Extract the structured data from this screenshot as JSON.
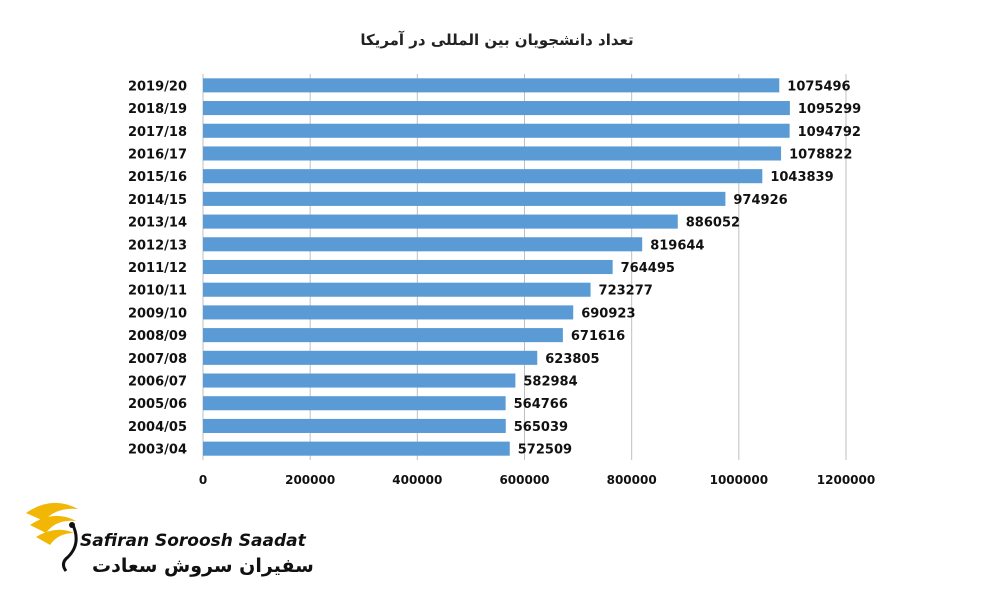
{
  "chart_data": {
    "type": "bar",
    "orientation": "horizontal",
    "title": "تعداد دانشجویان بین المللی در آمریکا",
    "categories": [
      "2019/20",
      "2018/19",
      "2017/18",
      "2016/17",
      "2015/16",
      "2014/15",
      "2013/14",
      "2012/13",
      "2011/12",
      "2010/11",
      "2009/10",
      "2008/09",
      "2007/08",
      "2006/07",
      "2005/06",
      "2004/05",
      "2003/04"
    ],
    "values": [
      1075496,
      1095299,
      1094792,
      1078822,
      1043839,
      974926,
      886052,
      819644,
      764495,
      723277,
      690923,
      671616,
      623805,
      582984,
      564766,
      565039,
      572509
    ],
    "value_labels": [
      "1075496",
      "1095299",
      "1094792",
      "1078822",
      "1043839",
      "974926",
      "886052",
      "819644",
      "764495",
      "723277",
      "690923",
      "671616",
      "623805",
      "582984",
      "564766",
      "565039",
      "572509"
    ],
    "xlim": [
      0,
      1200000
    ],
    "x_ticks": [
      "0",
      "200000",
      "400000",
      "600000",
      "800000",
      "1000000",
      "1200000"
    ],
    "grid": true,
    "bar_color": "#5b9bd5"
  },
  "logo": {
    "name_en": "Safiran Soroosh Saadat",
    "name_fa": "سفیران سروش سعادت",
    "accent": "#f2b705"
  }
}
